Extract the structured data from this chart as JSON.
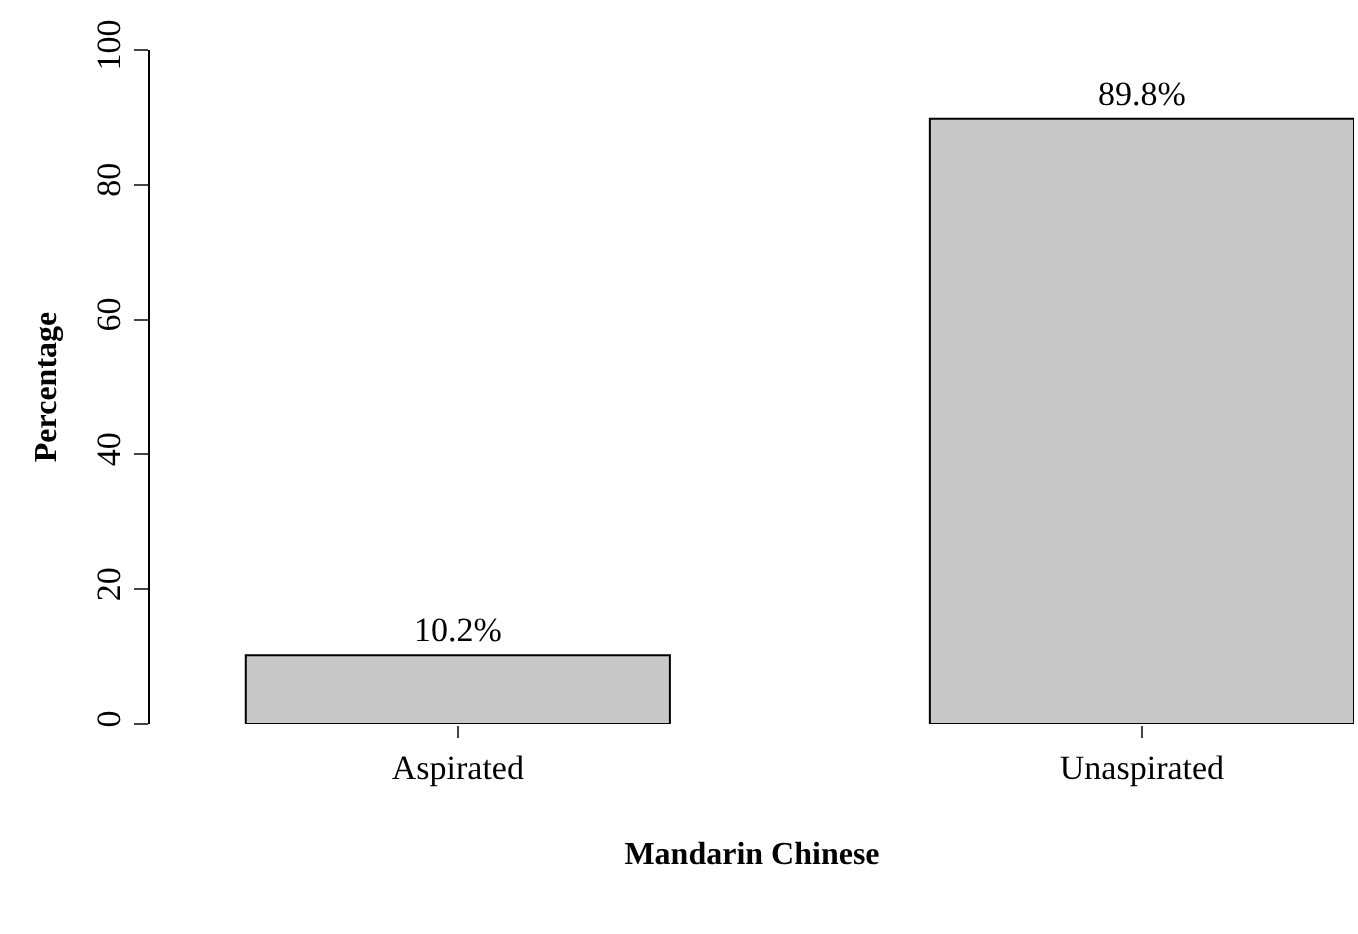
{
  "chart_data": {
    "type": "bar",
    "xlabel": "Mandarin Chinese",
    "ylabel": "Percentage",
    "categories": [
      "Aspirated",
      "Unaspirated"
    ],
    "values": [
      10.2,
      89.8
    ],
    "value_labels": [
      "10.2%",
      "89.8%"
    ],
    "color": "#c8c8c8",
    "ylim": [
      0,
      100
    ],
    "yticks": [
      0,
      20,
      40,
      60,
      80,
      100
    ],
    "grid": false
  }
}
